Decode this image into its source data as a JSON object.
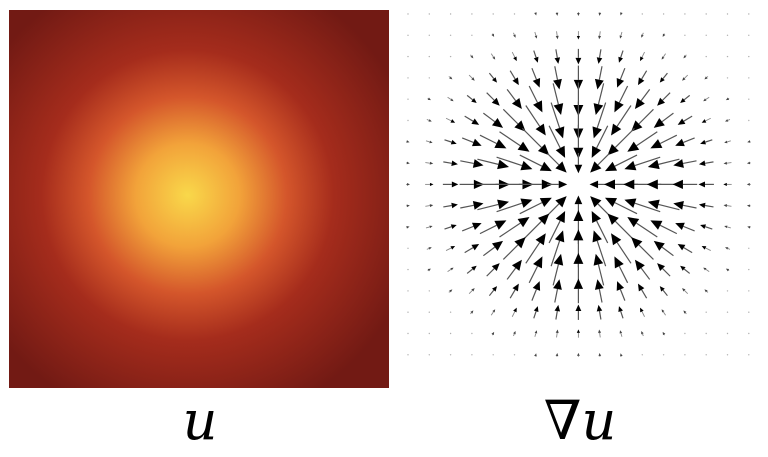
{
  "panels": {
    "scalar_field": {
      "label": "u",
      "colormap": [
        "#f9d84a",
        "#f2a33a",
        "#d4562b",
        "#a52c1c",
        "#721a14"
      ]
    },
    "gradient_field": {
      "label": "∇u",
      "arrow_color": "#000000",
      "arrow_direction": "toward-center"
    }
  }
}
